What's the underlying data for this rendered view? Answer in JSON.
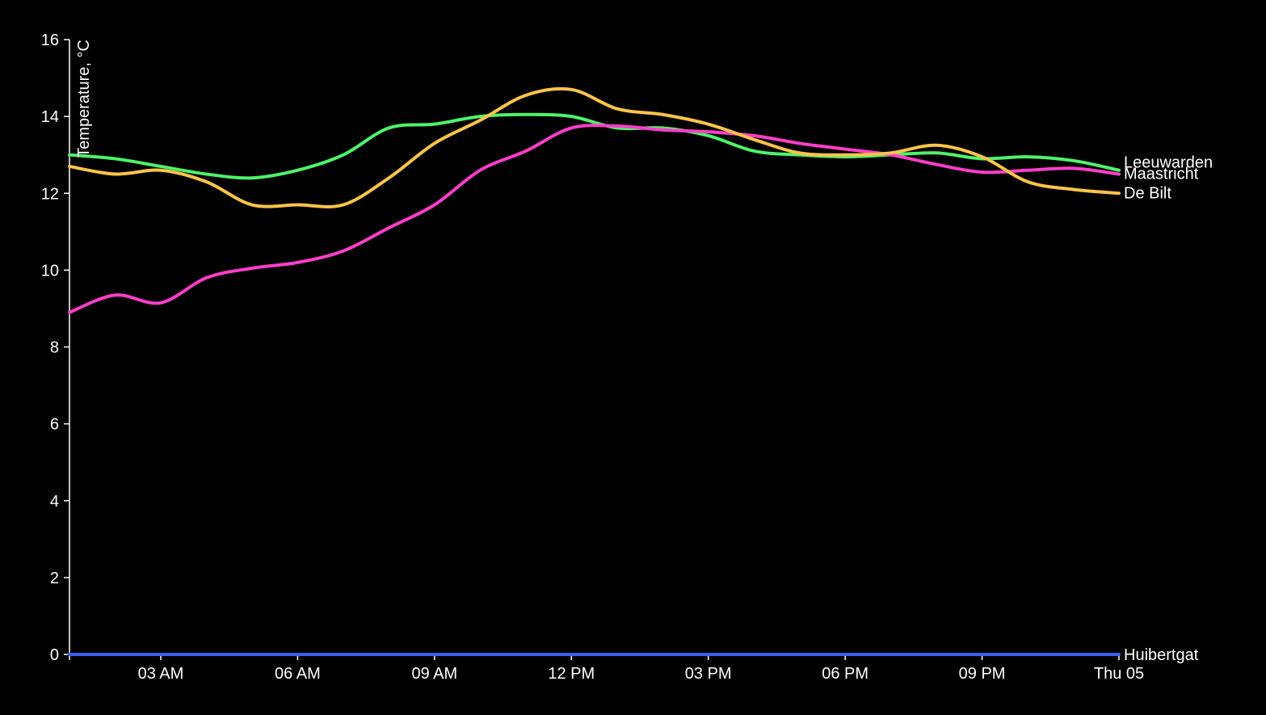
{
  "chart_data": {
    "type": "line",
    "ylabel": "Temperature, °C",
    "xlabel": "",
    "ylim": [
      0,
      16
    ],
    "xlim": [
      "2023-10-04T01:00",
      "2023-10-05T00:00"
    ],
    "y_ticks": [
      0,
      2,
      4,
      6,
      8,
      10,
      12,
      14,
      16
    ],
    "x_ticks": [
      {
        "time": "2023-10-04T03:00",
        "label": "03 AM"
      },
      {
        "time": "2023-10-04T06:00",
        "label": "06 AM"
      },
      {
        "time": "2023-10-04T09:00",
        "label": "09 AM"
      },
      {
        "time": "2023-10-04T12:00",
        "label": "12 PM"
      },
      {
        "time": "2023-10-04T15:00",
        "label": "03 PM"
      },
      {
        "time": "2023-10-04T18:00",
        "label": "06 PM"
      },
      {
        "time": "2023-10-04T21:00",
        "label": "09 PM"
      },
      {
        "time": "2023-10-05T00:00",
        "label": "Thu 05"
      }
    ],
    "x": [
      "2023-10-04T01:00",
      "2023-10-04T02:00",
      "2023-10-04T03:00",
      "2023-10-04T04:00",
      "2023-10-04T05:00",
      "2023-10-04T06:00",
      "2023-10-04T07:00",
      "2023-10-04T08:00",
      "2023-10-04T09:00",
      "2023-10-04T10:00",
      "2023-10-04T11:00",
      "2023-10-04T12:00",
      "2023-10-04T13:00",
      "2023-10-04T14:00",
      "2023-10-04T15:00",
      "2023-10-04T16:00",
      "2023-10-04T17:00",
      "2023-10-04T18:00",
      "2023-10-04T19:00",
      "2023-10-04T20:00",
      "2023-10-04T21:00",
      "2023-10-04T22:00",
      "2023-10-04T23:00",
      "2023-10-05T00:00"
    ],
    "series": [
      {
        "name": "Leeuwarden",
        "color": "#4ef26a",
        "values": [
          13.0,
          12.9,
          12.7,
          12.5,
          12.4,
          12.6,
          13.0,
          13.7,
          13.8,
          14.0,
          14.05,
          14.0,
          13.7,
          13.7,
          13.5,
          13.1,
          13.0,
          12.95,
          13.0,
          13.05,
          12.9,
          12.95,
          12.85,
          12.6
        ]
      },
      {
        "name": "Maastricht",
        "color": "#ff3ec9",
        "values": [
          8.9,
          9.35,
          9.15,
          9.8,
          10.05,
          10.2,
          10.5,
          11.1,
          11.7,
          12.6,
          13.1,
          13.7,
          13.75,
          13.65,
          13.6,
          13.5,
          13.3,
          13.15,
          13.0,
          12.75,
          12.55,
          12.6,
          12.65,
          12.5
        ]
      },
      {
        "name": "De Bilt",
        "color": "#fdc44a",
        "values": [
          12.7,
          12.5,
          12.6,
          12.3,
          11.7,
          11.7,
          11.7,
          12.4,
          13.3,
          13.9,
          14.55,
          14.7,
          14.2,
          14.05,
          13.8,
          13.4,
          13.05,
          13.0,
          13.05,
          13.25,
          12.95,
          12.3,
          12.1,
          12.0
        ]
      },
      {
        "name": "Huibertgat",
        "color": "#3b5ff0",
        "values": [
          0,
          0,
          0,
          0,
          0,
          0,
          0,
          0,
          0,
          0,
          0,
          0,
          0,
          0,
          0,
          0,
          0,
          0,
          0,
          0,
          0,
          0,
          0,
          0
        ]
      }
    ],
    "legend": "inline labels at line ends",
    "grid": false
  }
}
